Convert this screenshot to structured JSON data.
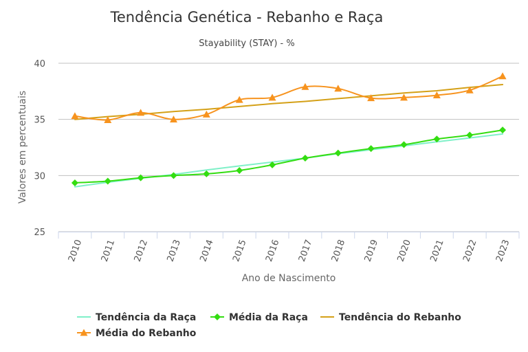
{
  "chart_data": {
    "type": "line",
    "title": "Tendência Genética - Rebanho e Raça",
    "subtitle": "Stayability (STAY) - %",
    "xlabel": "Ano de Nascimento",
    "ylabel": "Valores em percentuais",
    "categories": [
      "2010",
      "2011",
      "2012",
      "2013",
      "2014",
      "2015",
      "2016",
      "2017",
      "2018",
      "2019",
      "2020",
      "2021",
      "2022",
      "2023"
    ],
    "ylim": [
      25,
      40
    ],
    "yticks": [
      "25",
      "30",
      "35",
      "40"
    ],
    "grid": true,
    "legend_position": "bottom",
    "series": [
      {
        "name": "Tendência da Raça",
        "color": "#7ff0c8",
        "marker": "none",
        "smooth": false,
        "values": [
          29.0,
          29.4,
          29.75,
          30.1,
          30.5,
          30.85,
          31.2,
          31.55,
          31.95,
          32.3,
          32.65,
          33.0,
          33.35,
          33.7
        ]
      },
      {
        "name": "Média da Raça",
        "color": "#33dd11",
        "marker": "diamond",
        "smooth": true,
        "values": [
          29.35,
          29.5,
          29.8,
          30.0,
          30.15,
          30.45,
          30.95,
          31.55,
          32.0,
          32.4,
          32.75,
          33.25,
          33.6,
          34.05
        ]
      },
      {
        "name": "Tendência do Rebanho",
        "color": "#d4a017",
        "marker": "none",
        "smooth": false,
        "values": [
          35.0,
          35.25,
          35.45,
          35.7,
          35.9,
          36.15,
          36.4,
          36.6,
          36.85,
          37.1,
          37.35,
          37.55,
          37.85,
          38.1
        ]
      },
      {
        "name": "Média do Rebanho",
        "color": "#f7931e",
        "marker": "triangle",
        "smooth": true,
        "values": [
          35.3,
          34.95,
          35.6,
          35.0,
          35.45,
          36.75,
          36.95,
          37.9,
          37.75,
          36.9,
          36.95,
          37.15,
          37.6,
          38.85
        ]
      }
    ]
  }
}
